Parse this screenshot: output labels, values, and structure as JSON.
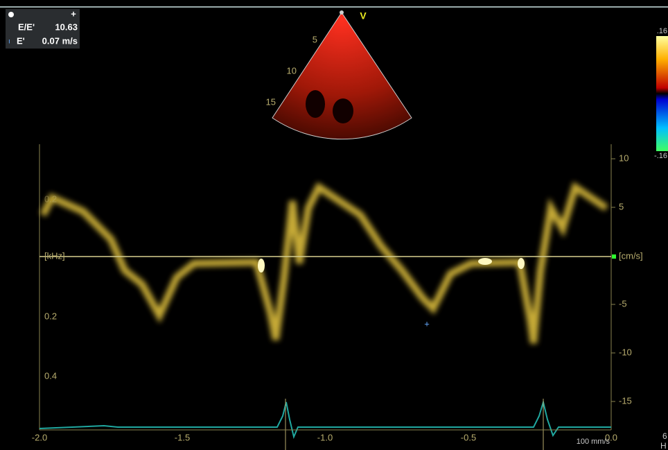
{
  "measurements": [
    {
      "label": "E/E'",
      "value": "10.63"
    },
    {
      "label": "E'",
      "value": "0.07 m/s"
    }
  ],
  "sector": {
    "mode": "V",
    "depths": [
      "5",
      "10",
      "15"
    ]
  },
  "color_bar": {
    "top": ".16",
    "bottom": "-.16"
  },
  "left_axis": {
    "labels": [
      "0.2",
      "[kHz]",
      "0.2",
      "0.4"
    ]
  },
  "right_axis": {
    "labels": [
      "10",
      "5",
      "[cm/s]",
      "-5",
      "-10",
      "-15"
    ]
  },
  "time_axis": {
    "labels": [
      "-2.0",
      "-1.5",
      "-1.0",
      "-0.5",
      "0.0"
    ]
  },
  "sweep_speed": "100 mm/s",
  "edge": {
    "labels": [
      "6",
      "H"
    ]
  }
}
